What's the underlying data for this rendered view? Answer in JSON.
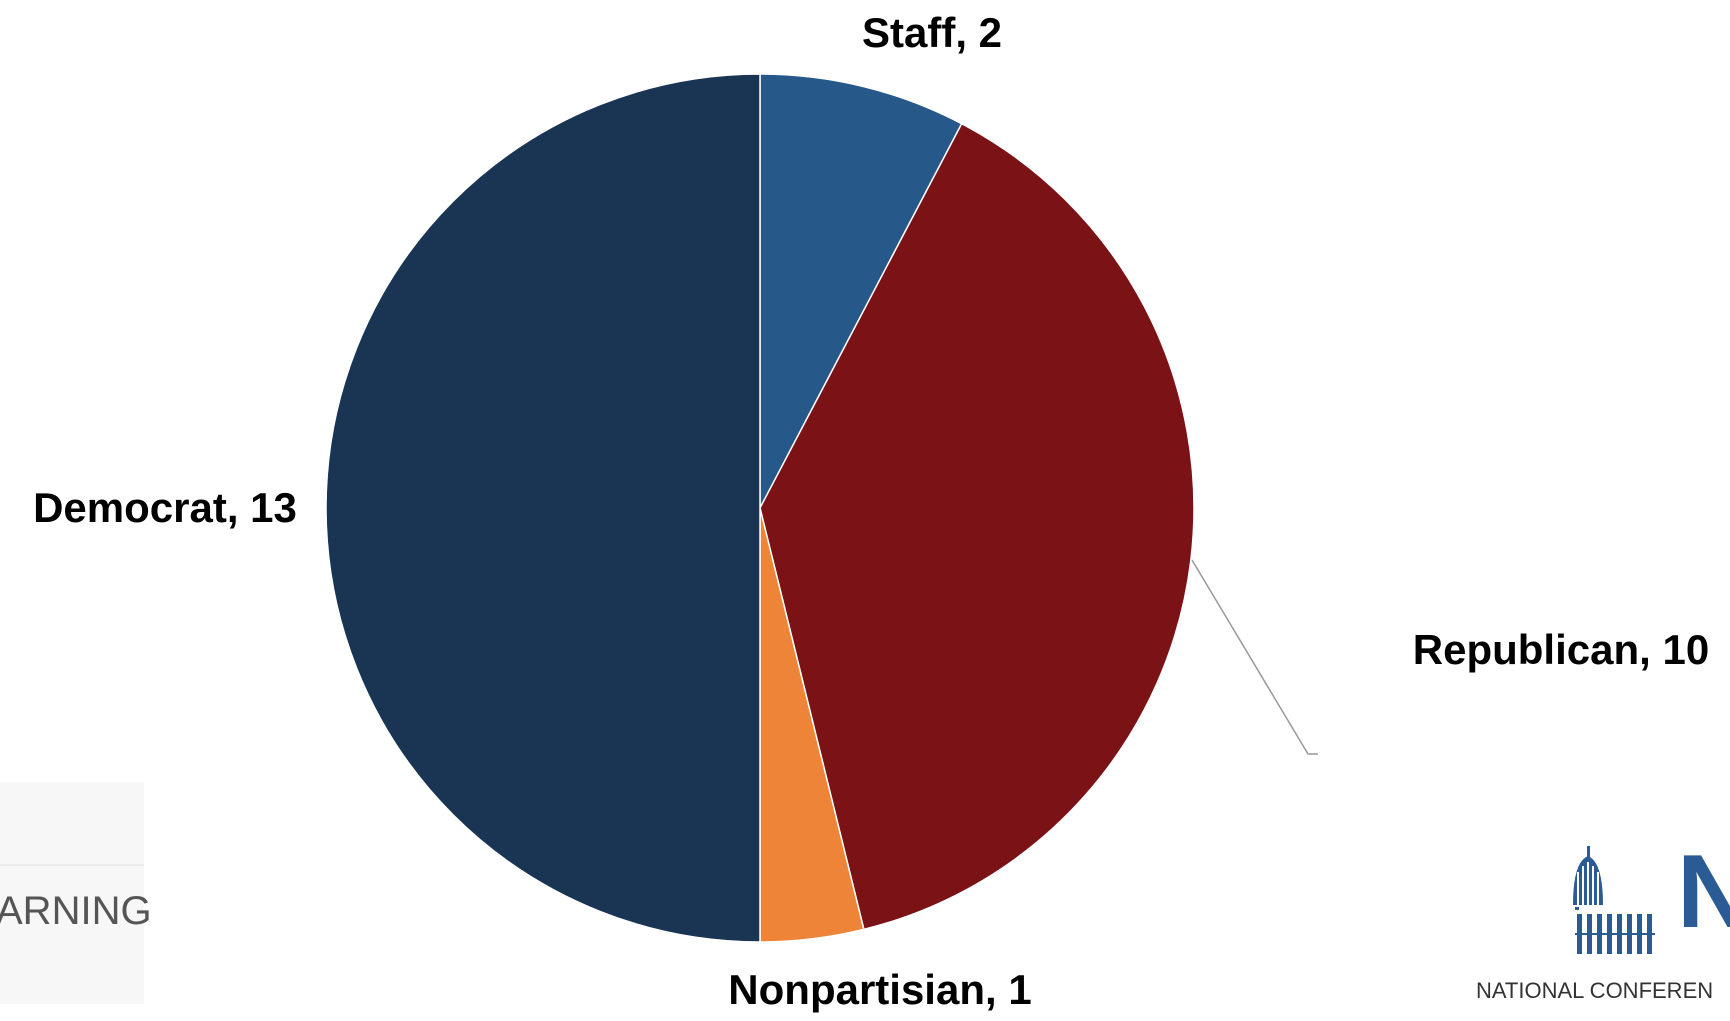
{
  "chart_data": {
    "type": "pie",
    "labels": [
      "Staff, 2",
      "Republican, 10",
      "Nonpartisian, 1",
      "Democrat, 13"
    ],
    "values": [
      2,
      10,
      1,
      13
    ],
    "colors": [
      "#26588a",
      "#7a1216",
      "#ed8437",
      "#1a3553"
    ]
  },
  "left_logo": {
    "text": "ARNING"
  },
  "right_logo": {
    "letter": "N",
    "text": "NATIONAL CONFEREN"
  }
}
